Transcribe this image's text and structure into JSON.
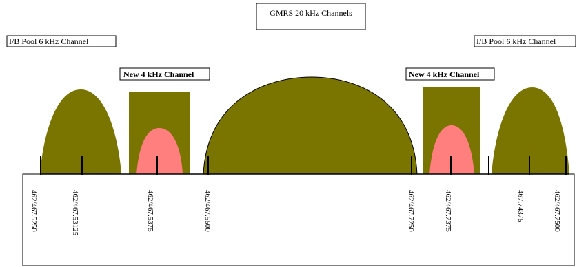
{
  "title": "GMRS 20 kHz Channels",
  "left_pool_label": "I/B Pool 6 kHz Channel",
  "right_pool_label": "I/B Pool 6 kHz Channel",
  "left_new_label": "New 4 kHz  Channel",
  "right_new_label": "New  4 kHz Channel",
  "frequencies": [
    "462/467.5250",
    "462/467.53125",
    "462/467.5375",
    "462/467.5500",
    "462/467.7250",
    "462/467.7375",
    "467.74375",
    "462/467.7500"
  ],
  "colors": {
    "olive": "#7a7400",
    "pink": "#ff7f7f",
    "outline": "#000000"
  }
}
